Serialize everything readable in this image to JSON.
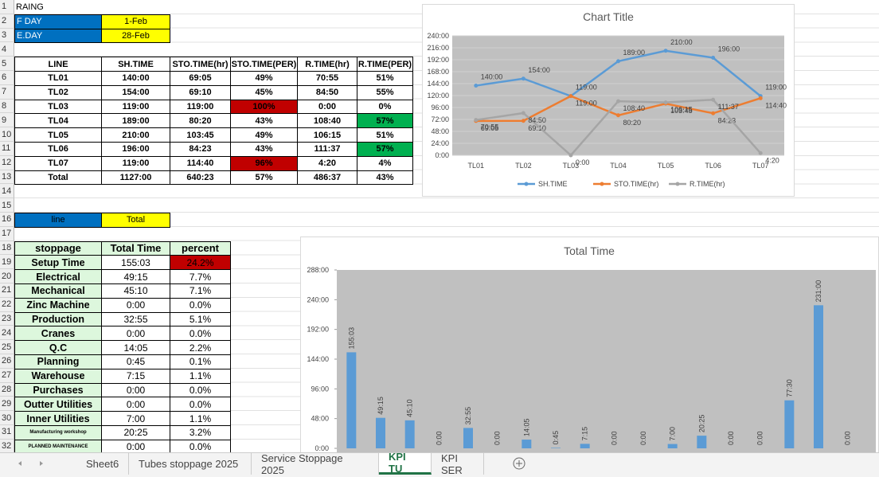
{
  "row_numbers": [
    1,
    2,
    3,
    4,
    5,
    6,
    7,
    8,
    9,
    10,
    11,
    12,
    13,
    14,
    15,
    16,
    17,
    18,
    19,
    20,
    21,
    22,
    23,
    24,
    25,
    26,
    27,
    28,
    29,
    30,
    31,
    32
  ],
  "cells": {
    "a1": "RAING",
    "a2": "F DAY",
    "b2": "1-Feb",
    "a3": "E.DAY",
    "b3": "28-Feb",
    "a16": "line",
    "b16": "Total"
  },
  "line_table": {
    "headers": [
      "LINE",
      "SH.TIME",
      "STO.TIME(hr)",
      "STO.TIME(PER)",
      "R.TIME(hr)",
      "R.TIME(PER)"
    ],
    "rows": [
      [
        "TL01",
        "140:00",
        "69:05",
        "49%",
        "70:55",
        "51%"
      ],
      [
        "TL02",
        "154:00",
        "69:10",
        "45%",
        "84:50",
        "55%"
      ],
      [
        "TL03",
        "119:00",
        "119:00",
        "100%",
        "0:00",
        "0%"
      ],
      [
        "TL04",
        "189:00",
        "80:20",
        "43%",
        "108:40",
        "57%"
      ],
      [
        "TL05",
        "210:00",
        "103:45",
        "49%",
        "106:15",
        "51%"
      ],
      [
        "TL06",
        "196:00",
        "84:23",
        "43%",
        "111:37",
        "57%"
      ],
      [
        "TL07",
        "119:00",
        "114:40",
        "96%",
        "4:20",
        "4%"
      ],
      [
        "Total",
        "1127:00",
        "640:23",
        "57%",
        "486:37",
        "43%"
      ]
    ]
  },
  "stoppage_table": {
    "headers": [
      "stoppage",
      "Total Time",
      "percent"
    ],
    "rows": [
      [
        "Setup Time",
        "155:03",
        "24.2%"
      ],
      [
        "Electrical",
        "49:15",
        "7.7%"
      ],
      [
        "Mechanical",
        "45:10",
        "7.1%"
      ],
      [
        "Zinc Machine",
        "0:00",
        "0.0%"
      ],
      [
        "Production",
        "32:55",
        "5.1%"
      ],
      [
        "Cranes",
        "0:00",
        "0.0%"
      ],
      [
        "Q.C",
        "14:05",
        "2.2%"
      ],
      [
        "Planning",
        "0:45",
        "0.1%"
      ],
      [
        "Warehouse",
        "7:15",
        "1.1%"
      ],
      [
        "Purchases",
        "0:00",
        "0.0%"
      ],
      [
        "Outter Utilities",
        "0:00",
        "0.0%"
      ],
      [
        "Inner Utilities",
        "7:00",
        "1.1%"
      ],
      [
        "Manufacturing workshop",
        "20:25",
        "3.2%"
      ],
      [
        "PLANNED MAINTENANCE",
        "0:00",
        "0.0%"
      ]
    ]
  },
  "chart_data": [
    {
      "type": "line",
      "title": "Chart Title",
      "categories": [
        "TL01",
        "TL02",
        "TL03",
        "TL04",
        "TL05",
        "TL06",
        "TL07"
      ],
      "series": [
        {
          "name": "SH.TIME",
          "color": "#5b9bd5",
          "values": [
            140,
            154,
            119,
            189,
            210,
            196,
            119
          ],
          "value_labels": [
            "140:00",
            "154:00",
            "119:00",
            "189:00",
            "210:00",
            "196:00",
            "119:00"
          ]
        },
        {
          "name": "STO.TIME(hr)",
          "color": "#ed7d31",
          "values": [
            69.0833,
            69.1667,
            119,
            80.3333,
            103.75,
            84.3833,
            114.6667
          ],
          "value_labels": [
            "69:05",
            "69:10",
            "119:00",
            "80:20",
            "103:45",
            "84:23",
            "114:40"
          ]
        },
        {
          "name": "R.TIME(hr)",
          "color": "#a5a5a5",
          "values": [
            70.9167,
            84.8333,
            0,
            108.6667,
            106.25,
            111.6167,
            4.3333
          ],
          "value_labels": [
            "70:55",
            "84:50",
            "0:00",
            "108:40",
            "106:15",
            "111:37",
            "4:20"
          ]
        }
      ],
      "ylim": [
        0,
        240
      ],
      "yticks": [
        {
          "value": 0,
          "label": "0:00"
        },
        {
          "value": 24,
          "label": "24:00"
        },
        {
          "value": 48,
          "label": "48:00"
        },
        {
          "value": 72,
          "label": "72:00"
        },
        {
          "value": 96,
          "label": "96:00"
        },
        {
          "value": 120,
          "label": "120:00"
        },
        {
          "value": 144,
          "label": "144:00"
        },
        {
          "value": 168,
          "label": "168:00"
        },
        {
          "value": 192,
          "label": "192:00"
        },
        {
          "value": 216,
          "label": "216:00"
        },
        {
          "value": 240,
          "label": "240:00"
        }
      ],
      "grid": true,
      "legend": "bottom"
    },
    {
      "type": "bar",
      "title": "Total Time",
      "color": "#5b9bd5",
      "values": [
        155.05,
        49.25,
        45.1667,
        0,
        32.9167,
        0,
        14.0833,
        0.75,
        7.25,
        0,
        0,
        7,
        20.4167,
        0,
        0,
        77.5,
        231,
        0
      ],
      "value_labels": [
        "155:03",
        "49:15",
        "45:10",
        "0:00",
        "32:55",
        "0:00",
        "14:05",
        "0:45",
        "7:15",
        "0:00",
        "0:00",
        "7:00",
        "20:25",
        "0:00",
        "0:00",
        "77:30",
        "231:00",
        "0:00"
      ],
      "ylim": [
        0,
        288
      ],
      "yticks": [
        {
          "value": 0,
          "label": "0:00"
        },
        {
          "value": 48,
          "label": "48:00"
        },
        {
          "value": 96,
          "label": "96:00"
        },
        {
          "value": 144,
          "label": "144:00"
        },
        {
          "value": 192,
          "label": "192:00"
        },
        {
          "value": 240,
          "label": "240:00"
        },
        {
          "value": 288,
          "label": "288:00"
        }
      ]
    }
  ],
  "sheet_tabs": [
    "Sheet6",
    "Tubes stoppage 2025",
    "Service Stoppage 2025",
    "KPI TU",
    "KPI SER"
  ],
  "active_tab": 3
}
